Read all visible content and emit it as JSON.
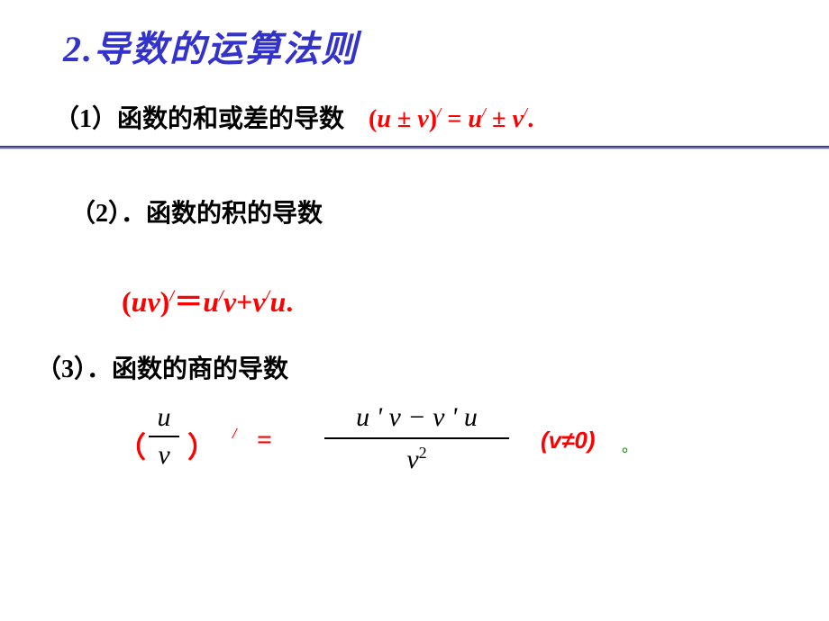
{
  "title": "2.导数的运算法则",
  "colors": {
    "title": "#3333cc",
    "formula": "#ff0000",
    "text": "#000000",
    "divider": "#666699",
    "period": "#008000",
    "background": "#ffffff"
  },
  "rule1": {
    "label": "（1）函数的和或差的导数",
    "formula_plain": "(u ± v)′ = u′ ± v′.",
    "parts": {
      "open": "(",
      "u": "u",
      "pm1": " ± ",
      "v": "v",
      "close_pr": ")",
      "eq": " = ",
      "u2": "u",
      "pm2": " ± ",
      "v2": "v",
      "dot": "."
    }
  },
  "rule2": {
    "label": "（2）．函数的积的导数",
    "formula_plain": "(uv)′＝u′v+v′u.",
    "parts": {
      "open": "(",
      "uv": "uv",
      "close": ")",
      "eq": "＝",
      "u": "u",
      "v1": "v",
      "plus": "+",
      "v2": "v",
      "u2": "u",
      "dot": "."
    }
  },
  "rule3": {
    "label": "（3）．函数的商的导数",
    "lparen": "（",
    "rparen": "）",
    "frac_left": {
      "num": "u",
      "den": "v"
    },
    "prime": "′",
    "equals": "=",
    "frac_right": {
      "num": "u ' v − v ' u",
      "den_base": "v",
      "den_exp": "2"
    },
    "condition": "(v≠0)",
    "period": "。"
  }
}
